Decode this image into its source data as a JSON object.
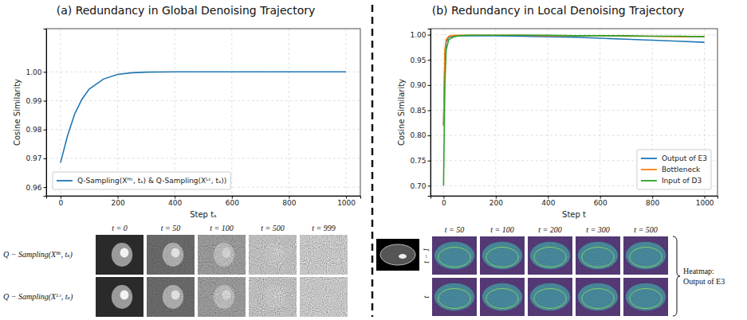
{
  "chart_data": [
    {
      "type": "line",
      "title": "(a) Redundancy in Global Denoising Trajectory",
      "x_label": "Step tₛ",
      "y_label": "Cosine Similarity",
      "x": [
        0,
        25,
        50,
        75,
        100,
        150,
        200,
        250,
        300,
        400,
        500,
        600,
        700,
        800,
        900,
        1000
      ],
      "series": [
        {
          "name": "Q-Sampling(Xᴴᶜ, tₛ) & Q-Sampling(Xᴸᶜ, tₛ))",
          "color": "#1f77b4",
          "values": [
            0.9685,
            0.978,
            0.9855,
            0.9905,
            0.994,
            0.9975,
            0.9991,
            0.9997,
            0.9999,
            1.0,
            1.0,
            1.0,
            1.0,
            1.0,
            1.0,
            1.0
          ]
        }
      ],
      "xlim": [
        -50,
        1050
      ],
      "ylim": [
        0.957,
        1.015
      ],
      "xticks": [
        0,
        200,
        400,
        600,
        800,
        1000
      ],
      "yticks": [
        0.96,
        0.97,
        0.98,
        0.99,
        {
          "value": 1.0,
          "label": "1.00"
        }
      ],
      "grid": true,
      "legend": "lower left"
    },
    {
      "type": "line",
      "title": "(b) Redundancy in Local Denoising Trajectory",
      "x_label": "Step t",
      "y_label": "Cosine Similarity",
      "x": [
        0,
        5,
        10,
        20,
        40,
        60,
        100,
        200,
        300,
        400,
        500,
        600,
        700,
        800,
        900,
        1000
      ],
      "series": [
        {
          "name": "Output of E3",
          "color": "#1f77b4",
          "values": [
            0.82,
            0.95,
            0.985,
            0.995,
            0.997,
            0.998,
            0.998,
            0.998,
            0.997,
            0.996,
            0.995,
            0.993,
            0.991,
            0.989,
            0.987,
            0.985
          ]
        },
        {
          "name": "Bottleneck",
          "color": "#ff7f0e",
          "values": [
            0.82,
            0.97,
            0.99,
            0.997,
            0.999,
            0.999,
            0.999,
            0.999,
            0.999,
            0.998,
            0.998,
            0.998,
            0.997,
            0.997,
            0.996,
            0.996
          ]
        },
        {
          "name": "Input of D3",
          "color": "#2ca02c",
          "values": [
            0.7,
            0.9,
            0.97,
            0.99,
            0.996,
            0.998,
            0.999,
            0.999,
            0.999,
            0.999,
            0.998,
            0.998,
            0.998,
            0.997,
            0.997,
            0.996
          ]
        }
      ],
      "xlim": [
        -50,
        1050
      ],
      "ylim": [
        0.68,
        1.012
      ],
      "xticks": [
        0,
        200,
        400,
        600,
        800,
        1000
      ],
      "yticks": [
        {
          "value": 0.7,
          "label": "0.70"
        },
        0.75,
        {
          "value": 0.8,
          "label": "0.80"
        },
        0.85,
        {
          "value": 0.9,
          "label": "0.90"
        },
        0.95,
        {
          "value": 1.0,
          "label": "1.00"
        }
      ],
      "grid": true,
      "legend": "lower right"
    }
  ],
  "image_grids": [
    {
      "column_labels": [
        "t = 0",
        "t = 50",
        "t = 100",
        "t = 500",
        "t = 999"
      ],
      "row_labels": [
        "Q − Sampling(Xᴴᶜ, tₛ)",
        "Q − Sampling(Xᴸᶜ, tₛ)"
      ]
    },
    {
      "column_labels": [
        "t = 50",
        "t = 100",
        "t = 200",
        "t = 300",
        "t = 500"
      ],
      "row_labels": [
        "t − 1",
        "t"
      ],
      "annotation": [
        "Heatmap:",
        "Output of E3"
      ]
    }
  ]
}
